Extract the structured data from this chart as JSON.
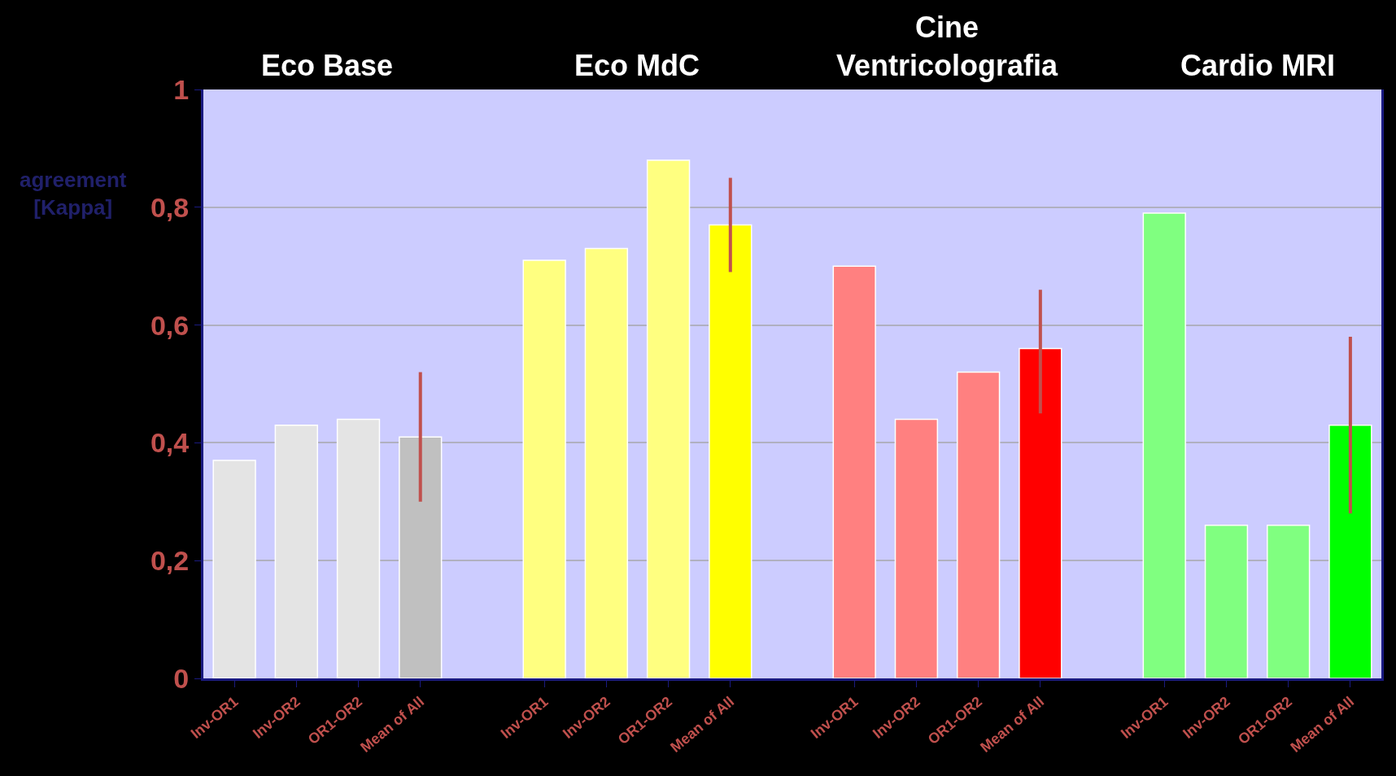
{
  "chart_data": {
    "type": "bar",
    "ylabel": "agreement [Kappa]",
    "annotations": [
      "Eco Base",
      "Eco MdC",
      "Cine Ventricolografia",
      "Cardio MRI"
    ],
    "categories": [
      "Inv-OR1",
      "Inv-OR2",
      "OR1-OR2",
      "Mean of All",
      null,
      "Inv-OR1",
      "Inv-OR2",
      "OR1-OR2",
      "Mean of All",
      null,
      "Inv-OR1",
      "Inv-OR2",
      "OR1-OR2",
      "Mean of All",
      null,
      "Inv-OR1",
      "Inv-OR2",
      "OR1-OR2",
      "Mean of All"
    ],
    "values": [
      0.37,
      0.43,
      0.44,
      0.41,
      null,
      0.71,
      0.73,
      0.88,
      0.77,
      null,
      0.7,
      0.44,
      0.52,
      0.56,
      null,
      0.79,
      0.26,
      0.26,
      0.43
    ],
    "colors": [
      "#e4e4e4",
      "#e4e4e4",
      "#e4e4e4",
      "#c0c0c0",
      "#000000",
      "#ffff80",
      "#ffff80",
      "#ffff80",
      "#ffff00",
      "#000000",
      "#ff8080",
      "#ff8080",
      "#ff8080",
      "#ff0000",
      "#000000",
      "#80ff80",
      "#80ff80",
      "#80ff80",
      "#00ff00"
    ],
    "errors": [
      null,
      null,
      null,
      [
        0.3,
        0.52
      ],
      null,
      null,
      null,
      null,
      [
        0.69,
        0.85
      ],
      null,
      null,
      null,
      null,
      [
        0.45,
        0.66
      ],
      null,
      null,
      null,
      null,
      [
        0.28,
        0.58
      ]
    ],
    "ylim": [
      0,
      1
    ],
    "yticks": [
      0,
      {
        "value": 0.2,
        "label": "0,2"
      },
      {
        "value": 0.4,
        "label": "0,4"
      },
      {
        "value": 0.6,
        "label": "0,6"
      },
      {
        "value": 0.8,
        "label": "0,8"
      },
      1
    ],
    "grid": "y",
    "legend": false
  }
}
